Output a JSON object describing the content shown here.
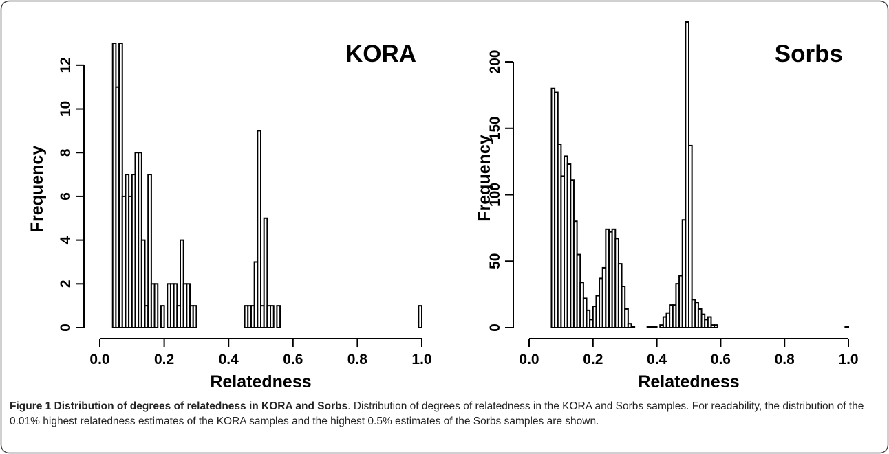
{
  "chart_data": [
    {
      "type": "histogram",
      "title": "KORA",
      "xlabel": "Relatedness",
      "ylabel": "Frequency",
      "color": "#ffffff",
      "bins": [
        0.04,
        0.05,
        0.06,
        0.07,
        0.08,
        0.09,
        0.1,
        0.11,
        0.12,
        0.13,
        0.14,
        0.15,
        0.16,
        0.17,
        0.18,
        0.19,
        0.2,
        0.21,
        0.22,
        0.23,
        0.24,
        0.25,
        0.26,
        0.27,
        0.28,
        0.29,
        0.3,
        0.31,
        0.32,
        0.33,
        0.34,
        0.35,
        0.36,
        0.37,
        0.38,
        0.39,
        0.4,
        0.41,
        0.42,
        0.43,
        0.44,
        0.45,
        0.46,
        0.47,
        0.48,
        0.49,
        0.5,
        0.51,
        0.52,
        0.53,
        0.54,
        0.55,
        0.56,
        0.57,
        0.58,
        0.59,
        0.6,
        0.61,
        0.62,
        0.63,
        0.64,
        0.65,
        0.66,
        0.67,
        0.68,
        0.69,
        0.7,
        0.71,
        0.72,
        0.73,
        0.74,
        0.75,
        0.76,
        0.77,
        0.78,
        0.79,
        0.8,
        0.81,
        0.82,
        0.83,
        0.84,
        0.85,
        0.86,
        0.87,
        0.88,
        0.89,
        0.9,
        0.91,
        0.92,
        0.93,
        0.94,
        0.95,
        0.96,
        0.97,
        0.98,
        0.99,
        1.0
      ],
      "values": [
        13,
        11,
        13,
        6,
        7,
        6,
        7,
        8,
        8,
        4,
        1,
        7,
        2,
        2,
        0,
        1,
        0,
        2,
        2,
        2,
        1,
        4,
        2,
        2,
        1,
        1,
        0,
        0,
        0,
        0,
        0,
        0,
        0,
        0,
        0,
        0,
        0,
        0,
        0,
        0,
        0,
        1,
        1,
        1,
        3,
        9,
        1,
        5,
        1,
        1,
        0,
        1,
        0,
        0,
        0,
        0,
        0,
        0,
        0,
        0,
        0,
        0,
        0,
        0,
        0,
        0,
        0,
        0,
        0,
        0,
        0,
        0,
        0,
        0,
        0,
        0,
        0,
        0,
        0,
        0,
        0,
        0,
        0,
        0,
        0,
        0,
        0,
        0,
        0,
        0,
        0,
        0,
        0,
        0,
        0,
        1
      ],
      "xlim": [
        0,
        1
      ],
      "xticks": [
        {
          "value": 0,
          "label": "0.0"
        },
        0.2,
        0.4,
        0.6,
        0.8,
        {
          "value": 1,
          "label": "1.0"
        }
      ],
      "ylim": [
        0,
        13
      ],
      "yticks": [
        0,
        2,
        4,
        6,
        8,
        10,
        12
      ]
    },
    {
      "type": "histogram",
      "title": "Sorbs",
      "xlabel": "Relatedness",
      "ylabel": "Frequency",
      "color": "#ffffff",
      "bins": [
        0.07,
        0.08,
        0.09,
        0.1,
        0.11,
        0.12,
        0.13,
        0.14,
        0.15,
        0.16,
        0.17,
        0.18,
        0.19,
        0.2,
        0.21,
        0.22,
        0.23,
        0.24,
        0.25,
        0.26,
        0.27,
        0.28,
        0.29,
        0.3,
        0.31,
        0.32,
        0.33,
        0.34,
        0.35,
        0.36,
        0.37,
        0.38,
        0.39,
        0.4,
        0.41,
        0.42,
        0.43,
        0.44,
        0.45,
        0.46,
        0.47,
        0.48,
        0.49,
        0.5,
        0.51,
        0.52,
        0.53,
        0.54,
        0.55,
        0.56,
        0.57,
        0.58,
        0.59,
        0.6,
        0.61,
        0.62,
        0.63,
        0.64,
        0.65,
        0.66,
        0.67,
        0.68,
        0.69,
        0.7,
        0.71,
        0.72,
        0.73,
        0.74,
        0.75,
        0.76,
        0.77,
        0.78,
        0.79,
        0.8,
        0.81,
        0.82,
        0.83,
        0.84,
        0.85,
        0.86,
        0.87,
        0.88,
        0.89,
        0.9,
        0.91,
        0.92,
        0.93,
        0.94,
        0.95,
        0.96,
        0.97,
        0.98,
        0.99,
        1.0
      ],
      "values": [
        180,
        177,
        138,
        114,
        129,
        123,
        111,
        80,
        55,
        34,
        22,
        13,
        6,
        16,
        24,
        37,
        45,
        74,
        72,
        74,
        67,
        48,
        31,
        14,
        3,
        1,
        0,
        0,
        0,
        0,
        1,
        1,
        1,
        0,
        2,
        8,
        11,
        17,
        17,
        33,
        39,
        81,
        230,
        137,
        21,
        19,
        14,
        10,
        6,
        8,
        2,
        2,
        0,
        0,
        0,
        0,
        0,
        0,
        0,
        0,
        0,
        0,
        0,
        0,
        0,
        0,
        0,
        0,
        0,
        0,
        0,
        0,
        0,
        0,
        0,
        0,
        0,
        0,
        0,
        0,
        0,
        0,
        0,
        0,
        0,
        0,
        0,
        0,
        0,
        0,
        0,
        0,
        1
      ],
      "xlim": [
        0,
        1
      ],
      "xticks": [
        {
          "value": 0,
          "label": "0.0"
        },
        0.2,
        0.4,
        0.6,
        0.8,
        {
          "value": 1,
          "label": "1.0"
        }
      ],
      "ylim": [
        0,
        230
      ],
      "yticks": [
        0,
        50,
        100,
        150,
        200
      ]
    }
  ],
  "caption": {
    "label": "Figure 1",
    "title": "Distribution of degrees of relatedness in KORA and Sorbs",
    "text": ". Distribution of degrees of relatedness in the KORA and Sorbs samples. For readability, the distribution of the 0.01% highest relatedness estimates of the KORA samples and the highest 0.5% estimates of the Sorbs samples are shown."
  }
}
